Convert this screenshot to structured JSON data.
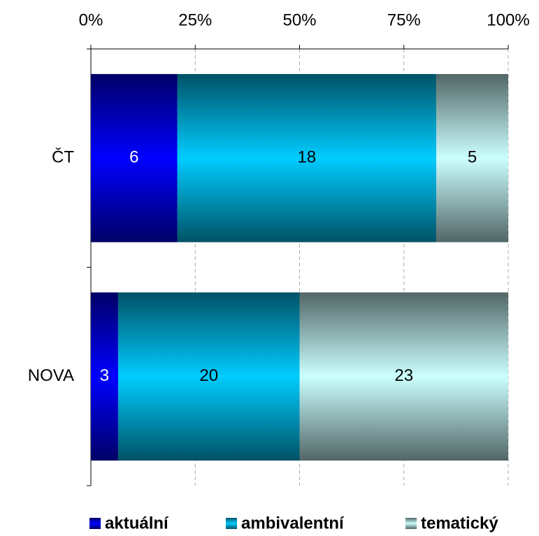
{
  "chart_data": {
    "type": "bar",
    "orientation": "horizontal",
    "stacking": "percent",
    "categories": [
      "ČT",
      "NOVA"
    ],
    "series": [
      {
        "name": "aktuální",
        "color": "#0000ff",
        "values": [
          6,
          3
        ]
      },
      {
        "name": "ambivalentní",
        "color": "#00ccff",
        "values": [
          18,
          20
        ]
      },
      {
        "name": "tematický",
        "color": "#ccffff",
        "values": [
          5,
          23
        ]
      }
    ],
    "xlim": [
      0,
      100
    ],
    "xticks": [
      {
        "value": 0,
        "label": "0%"
      },
      {
        "value": 25,
        "label": "25%"
      },
      {
        "value": 50,
        "label": "50%"
      },
      {
        "value": 75,
        "label": "75%"
      },
      {
        "value": 100,
        "label": "100%"
      }
    ],
    "grid": true,
    "legend": "bottom"
  }
}
